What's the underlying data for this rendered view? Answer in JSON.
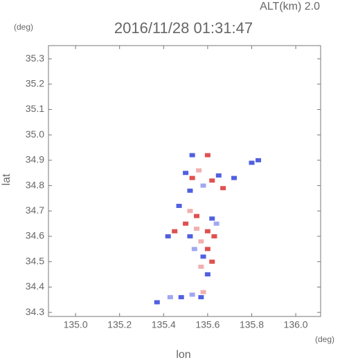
{
  "chart_data": {
    "type": "scatter",
    "title": "2016/11/28 01:31:47",
    "subtitle": "ALT(km) 2.0",
    "x_label": "lon",
    "y_label": "lat",
    "x_unit": "(deg)",
    "y_unit": "(deg)",
    "xlim": [
      134.877,
      136.113
    ],
    "ylim": [
      34.284,
      35.352
    ],
    "xticks": [
      {
        "value": 135.0,
        "label": "135.0"
      },
      {
        "value": 135.2,
        "label": "135.2"
      },
      {
        "value": 135.4,
        "label": "135.4"
      },
      {
        "value": 135.6,
        "label": "135.6"
      },
      {
        "value": 135.8,
        "label": "135.8"
      },
      {
        "value": 136.0,
        "label": "136.0"
      }
    ],
    "yticks": [
      34.3,
      34.4,
      34.5,
      34.6,
      34.7,
      34.8,
      34.9,
      {
        "value": 35.0,
        "label": "35.0"
      },
      35.1,
      35.2,
      35.3
    ],
    "x": [
      135.53,
      135.6,
      135.5,
      135.53,
      135.56,
      135.62,
      135.65,
      135.72,
      135.8,
      135.83,
      135.67,
      135.58,
      135.52,
      135.47,
      135.52,
      135.55,
      135.62,
      135.64,
      135.5,
      135.55,
      135.6,
      135.63,
      135.52,
      135.57,
      135.6,
      135.54,
      135.58,
      135.62,
      135.57,
      135.6,
      135.45,
      135.42,
      135.37,
      135.43,
      135.48,
      135.53,
      135.58,
      135.57
    ],
    "values": [
      34.92,
      34.92,
      34.85,
      34.83,
      34.86,
      34.82,
      34.84,
      34.83,
      34.89,
      34.9,
      34.79,
      34.8,
      34.78,
      34.72,
      34.7,
      34.68,
      34.67,
      34.65,
      34.65,
      34.63,
      34.62,
      34.6,
      34.6,
      34.58,
      34.55,
      34.55,
      34.52,
      34.5,
      34.48,
      34.45,
      34.62,
      34.6,
      34.34,
      34.36,
      34.36,
      34.37,
      34.38,
      34.36
    ],
    "colors": [
      "#5060e0",
      "#e05050",
      "#5060e0",
      "#e05050",
      "#f0b0b0",
      "#e05050",
      "#5060e0",
      "#5060e0",
      "#5060e0",
      "#5060e0",
      "#e05050",
      "#a0a8f0",
      "#5060e0",
      "#5060e0",
      "#f0b0b0",
      "#e05050",
      "#5060e0",
      "#a0a8f0",
      "#e05050",
      "#f0b0b0",
      "#e05050",
      "#e05050",
      "#5060e0",
      "#f0b0b0",
      "#e05050",
      "#a0a8f0",
      "#5060e0",
      "#e05050",
      "#f0b0b0",
      "#5060e0",
      "#e05050",
      "#5060e0",
      "#5060e0",
      "#a0a8f0",
      "#5060e0",
      "#a0a8f0",
      "#f0b0b0",
      "#5060e0"
    ]
  }
}
